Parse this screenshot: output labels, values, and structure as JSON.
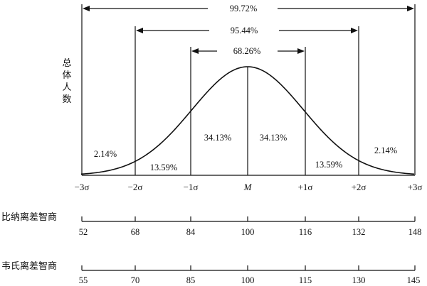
{
  "y_axis_label": [
    "总",
    "体",
    "人",
    "数"
  ],
  "ranges": [
    {
      "label": "99.72%",
      "from": "-3σ",
      "to": "+3σ"
    },
    {
      "label": "95.44%",
      "from": "-2σ",
      "to": "+2σ"
    },
    {
      "label": "68.26%",
      "from": "-1σ",
      "to": "+1σ"
    }
  ],
  "regions": [
    "2.14%",
    "13.59%",
    "34.13%",
    "34.13%",
    "13.59%",
    "2.14%"
  ],
  "sigma_labels": [
    "−3σ",
    "−2σ",
    "−1σ",
    "M",
    "+1σ",
    "+2σ",
    "+3σ"
  ],
  "scales": [
    {
      "name": "比纳离差智商",
      "values": [
        "52",
        "68",
        "84",
        "100",
        "116",
        "132",
        "148"
      ]
    },
    {
      "name": "韦氏离差智商",
      "values": [
        "55",
        "70",
        "85",
        "100",
        "115",
        "130",
        "145"
      ]
    }
  ],
  "colors": {
    "ink": "#111111",
    "background": "#ffffff"
  }
}
